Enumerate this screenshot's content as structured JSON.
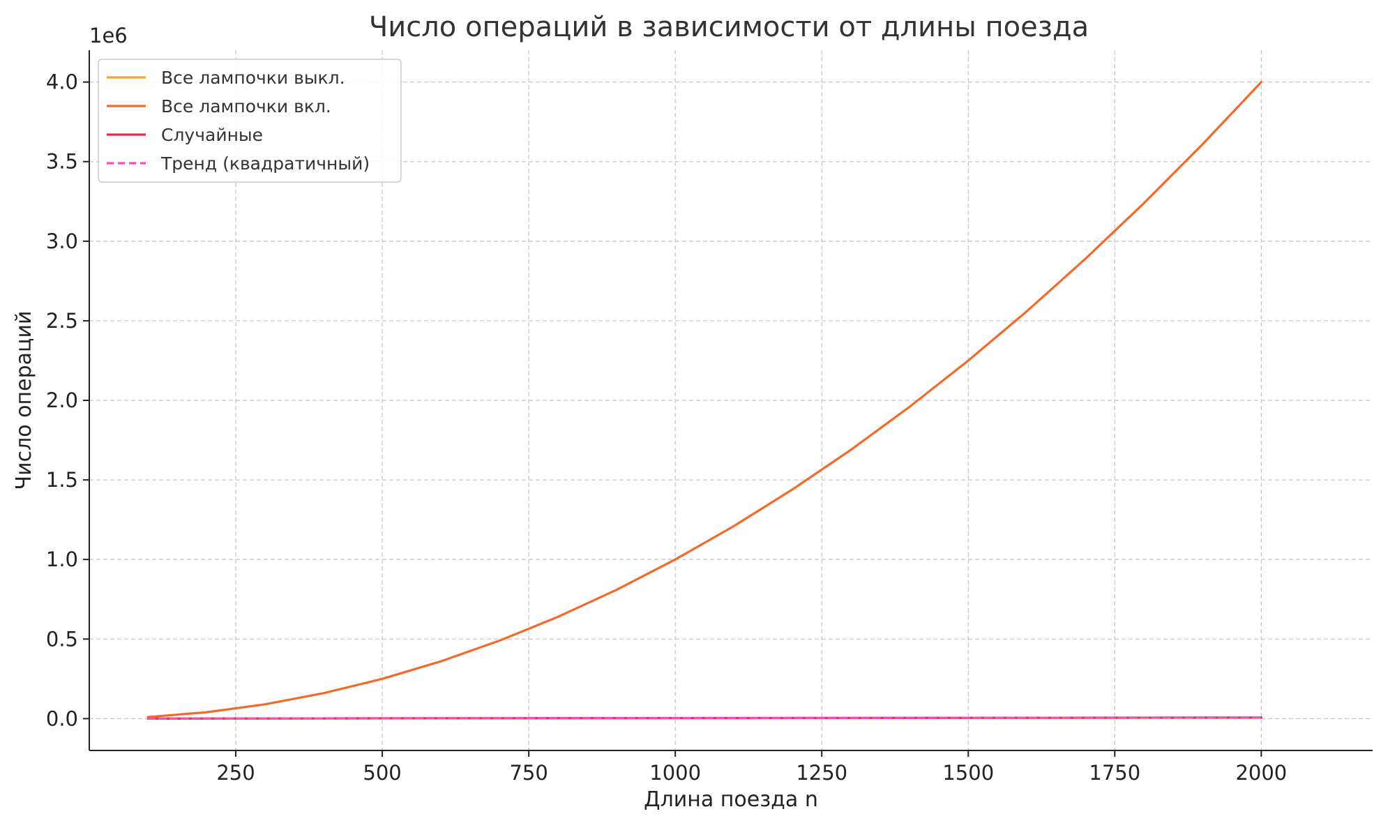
{
  "chart_data": {
    "type": "line",
    "title": "Число операций в зависимости от длины поезда",
    "xlabel": "Длина поезда n",
    "ylabel": "Число операций",
    "y_offset_label": "1e6",
    "xlim": [
      0,
      2190
    ],
    "ylim": [
      -200000,
      4200000
    ],
    "x_ticks": [
      250,
      500,
      750,
      1000,
      1250,
      1500,
      1750,
      2000
    ],
    "x_tick_labels": [
      "250",
      "500",
      "750",
      "1000",
      "1250",
      "1500",
      "1750",
      "2000"
    ],
    "y_ticks": [
      0,
      500000,
      1000000,
      1500000,
      2000000,
      2500000,
      3000000,
      3500000,
      4000000
    ],
    "y_tick_labels": [
      "0.0",
      "0.5",
      "1.0",
      "1.5",
      "2.0",
      "2.5",
      "3.0",
      "3.5",
      "4.0"
    ],
    "grid": true,
    "legend_position": "top-left",
    "x": [
      100,
      200,
      300,
      400,
      500,
      600,
      700,
      800,
      900,
      1000,
      1100,
      1200,
      1300,
      1400,
      1500,
      1600,
      1700,
      1800,
      1900,
      2000
    ],
    "series": [
      {
        "name": "Все лампочки выкл.",
        "color": "#f5a623",
        "dash": false,
        "values": [
          300,
          600,
          900,
          1200,
          1500,
          1800,
          2100,
          2400,
          2700,
          3000,
          3300,
          3600,
          3900,
          4200,
          4500,
          4800,
          5100,
          5400,
          5700,
          6000
        ]
      },
      {
        "name": "Все лампочки вкл.",
        "color": "#f26a2a",
        "dash": false,
        "values": [
          10000,
          40000,
          90000,
          160000,
          250000,
          360000,
          490000,
          640000,
          810000,
          1000000,
          1210000,
          1440000,
          1690000,
          1960000,
          2250000,
          2560000,
          2890000,
          3240000,
          3610000,
          4000000
        ]
      },
      {
        "name": "Случайные",
        "color": "#e8294f",
        "dash": false,
        "values": [
          350,
          700,
          1050,
          1400,
          1750,
          2100,
          2450,
          2800,
          3150,
          3500,
          3850,
          4200,
          4550,
          4900,
          5250,
          5600,
          5950,
          6300,
          6650,
          7000
        ]
      },
      {
        "name": "Тренд (квадратичный)",
        "color": "#f550b4",
        "dash": true,
        "values": [
          350,
          700,
          1050,
          1400,
          1750,
          2100,
          2450,
          2800,
          3150,
          3500,
          3850,
          4200,
          4550,
          4900,
          5250,
          5600,
          5950,
          6300,
          6650,
          7000
        ]
      }
    ]
  }
}
